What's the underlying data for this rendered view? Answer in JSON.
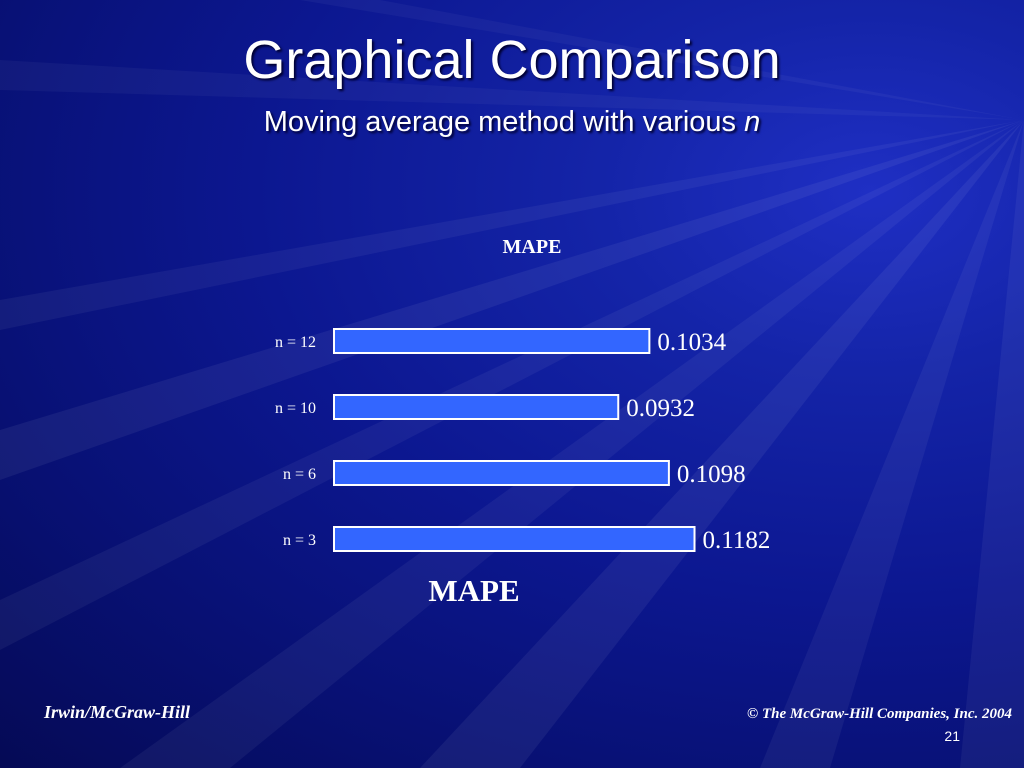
{
  "slide": {
    "title": "Graphical Comparison",
    "subtitle_main": "Moving average method with various ",
    "subtitle_var": "n",
    "footer_left": "Irwin/McGraw-Hill",
    "footer_right": "© The McGraw-Hill Companies, Inc. 2004",
    "page_number": "21"
  },
  "colors": {
    "bar_fill": "#3366ff",
    "bar_stroke": "#ffffff",
    "text": "#ffffff"
  },
  "chart_data": {
    "type": "bar",
    "orientation": "horizontal",
    "title": "MAPE",
    "xlabel": "MAPE",
    "ylabel": "",
    "categories": [
      "n = 12",
      "n = 10",
      "n = 6",
      "n = 3"
    ],
    "values": [
      0.1034,
      0.0932,
      0.1098,
      0.1182
    ],
    "data_labels": [
      "0.1034",
      "0.0932",
      "0.1098",
      "0.1182"
    ],
    "xlim": [
      0,
      0.12
    ],
    "grid": false,
    "legend": "none"
  }
}
